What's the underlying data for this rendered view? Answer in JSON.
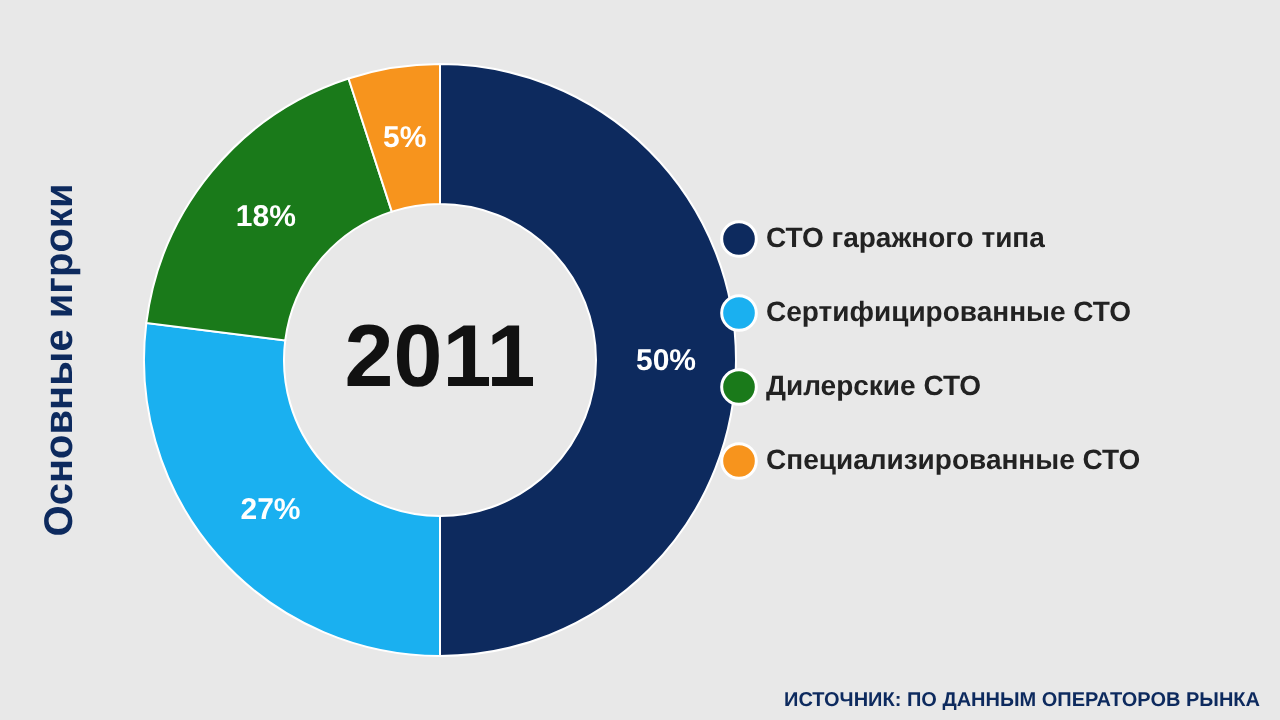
{
  "chart_data": {
    "type": "donut",
    "title": "Основные игроки",
    "categories": [
      "СТО гаражного типа",
      "Сертифицированные СТО",
      "Дилерские СТО",
      "Специализированные СТО"
    ],
    "values": [
      50,
      27,
      18,
      5
    ],
    "value_labels": [
      "50%",
      "27%",
      "18%",
      "5%"
    ],
    "colors": [
      "#0d2a5e",
      "#1ab0f0",
      "#1a7a1a",
      "#f7941d"
    ],
    "annotations": [
      "2011",
      "ИСТОЧНИК: ПО ДАННЫМ ОПЕРАТОРОВ РЫНКА"
    ],
    "legend": "right"
  }
}
